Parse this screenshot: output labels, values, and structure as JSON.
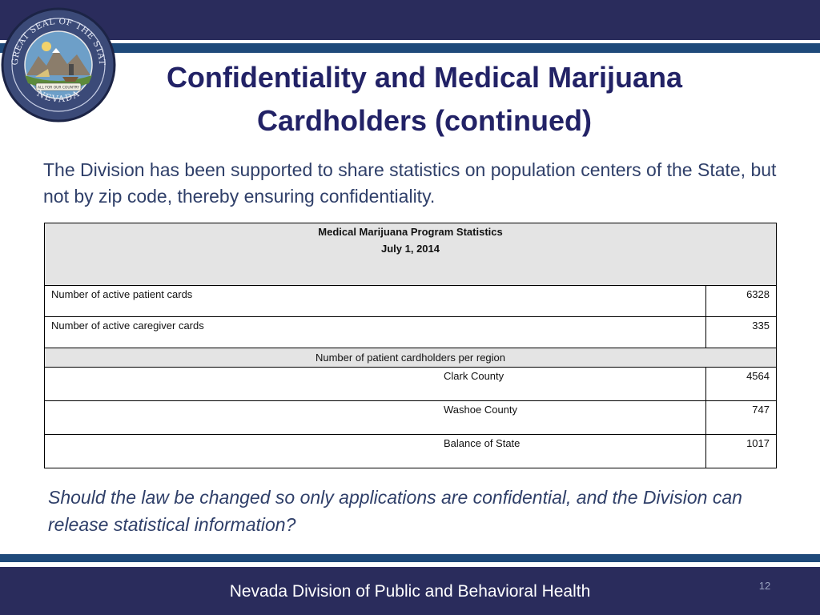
{
  "slide": {
    "title_line1": "Confidentiality and Medical Marijuana",
    "title_line2": "Cardholders (continued)",
    "intro": "The Division has been supported to share statistics on population centers of the State, but not by zip code, thereby ensuring confidentiality.",
    "question": "Should the law be changed so only applications are confidential, and the Division can release statistical information?",
    "footer": "Nevada Division of Public and Behavioral Health",
    "page_number": "12"
  },
  "seal": {
    "ring_text": "THE GREAT SEAL OF THE STATE OF",
    "state_text": "NEVADA",
    "motto": "ALL FOR OUR COUNTRY"
  },
  "table": {
    "title": "Medical Marijuana Program Statistics",
    "date": "July 1, 2014",
    "rows": [
      {
        "label": "Number of active patient cards",
        "value": "6328"
      },
      {
        "label": "Number of active caregiver cards",
        "value": "335"
      }
    ],
    "region_header": "Number of patient cardholders per region",
    "regions": [
      {
        "label": "Clark County",
        "value": "4564"
      },
      {
        "label": "Washoe County",
        "value": "747"
      },
      {
        "label": "Balance of State",
        "value": "1017"
      }
    ]
  },
  "colors": {
    "band": "#2a2c5c",
    "stripe": "#1f4a7a",
    "title": "#222266",
    "body_text": "#2f3f69",
    "table_header_bg": "#e4e4e4"
  }
}
